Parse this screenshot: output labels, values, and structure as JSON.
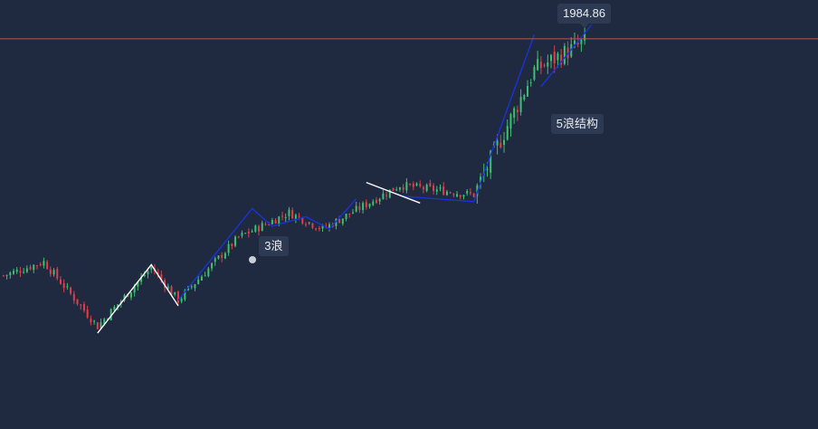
{
  "price_line": {
    "label": "1984.86",
    "value": 1984.86,
    "color": "#c0504d"
  },
  "annotations": [
    {
      "name": "wave-3-label",
      "text": "3浪"
    },
    {
      "name": "wave-5-structure-label",
      "text": "5浪结构"
    }
  ],
  "colors": {
    "background": "#1f2940",
    "up_candle": "#3fbf6f",
    "down_candle": "#e0404a",
    "wave_line": "#1a33d6",
    "correction_line": "#ffffff"
  },
  "chart_data": {
    "type": "candlestick",
    "title": "",
    "ylabel": "",
    "xlabel": "",
    "y_scale": "linear",
    "ylim": [
      1700,
      2000
    ],
    "grid": false,
    "current_price": 1984.86,
    "segments": [
      {
        "from": 0,
        "to": 12,
        "start": 1812,
        "end": 1822,
        "trend": "range"
      },
      {
        "from": 12,
        "to": 28,
        "start": 1822,
        "end": 1775,
        "trend": "down"
      },
      {
        "from": 28,
        "to": 44,
        "start": 1775,
        "end": 1818,
        "trend": "up"
      },
      {
        "from": 44,
        "to": 52,
        "start": 1818,
        "end": 1794,
        "trend": "down"
      },
      {
        "from": 52,
        "to": 70,
        "start": 1794,
        "end": 1840,
        "trend": "up"
      },
      {
        "from": 70,
        "to": 85,
        "start": 1840,
        "end": 1858,
        "trend": "up"
      },
      {
        "from": 85,
        "to": 95,
        "start": 1858,
        "end": 1846,
        "trend": "down"
      },
      {
        "from": 95,
        "to": 118,
        "start": 1846,
        "end": 1878,
        "trend": "up"
      },
      {
        "from": 118,
        "to": 140,
        "start": 1878,
        "end": 1871,
        "trend": "range"
      },
      {
        "from": 140,
        "to": 158,
        "start": 1871,
        "end": 1962,
        "trend": "up"
      },
      {
        "from": 158,
        "to": 174,
        "start": 1962,
        "end": 1984,
        "trend": "up"
      }
    ],
    "candle_count": 174,
    "wave_lines": [
      {
        "style": "impulse",
        "points": [
          [
            52,
            1794
          ],
          [
            74,
            1861
          ],
          [
            80,
            1848
          ],
          [
            90,
            1855
          ],
          [
            97,
            1846
          ],
          [
            105,
            1868
          ]
        ]
      },
      {
        "style": "impulse",
        "points": [
          [
            118,
            1870
          ],
          [
            140,
            1866
          ],
          [
            158,
            1988
          ]
        ]
      },
      {
        "style": "impulse",
        "points": [
          [
            160,
            1950
          ],
          [
            175,
            1995
          ]
        ]
      },
      {
        "style": "correction",
        "points": [
          [
            28,
            1770
          ],
          [
            44,
            1820
          ],
          [
            52,
            1790
          ]
        ]
      },
      {
        "style": "correction",
        "points": [
          [
            108,
            1880
          ],
          [
            124,
            1865
          ]
        ]
      }
    ]
  }
}
